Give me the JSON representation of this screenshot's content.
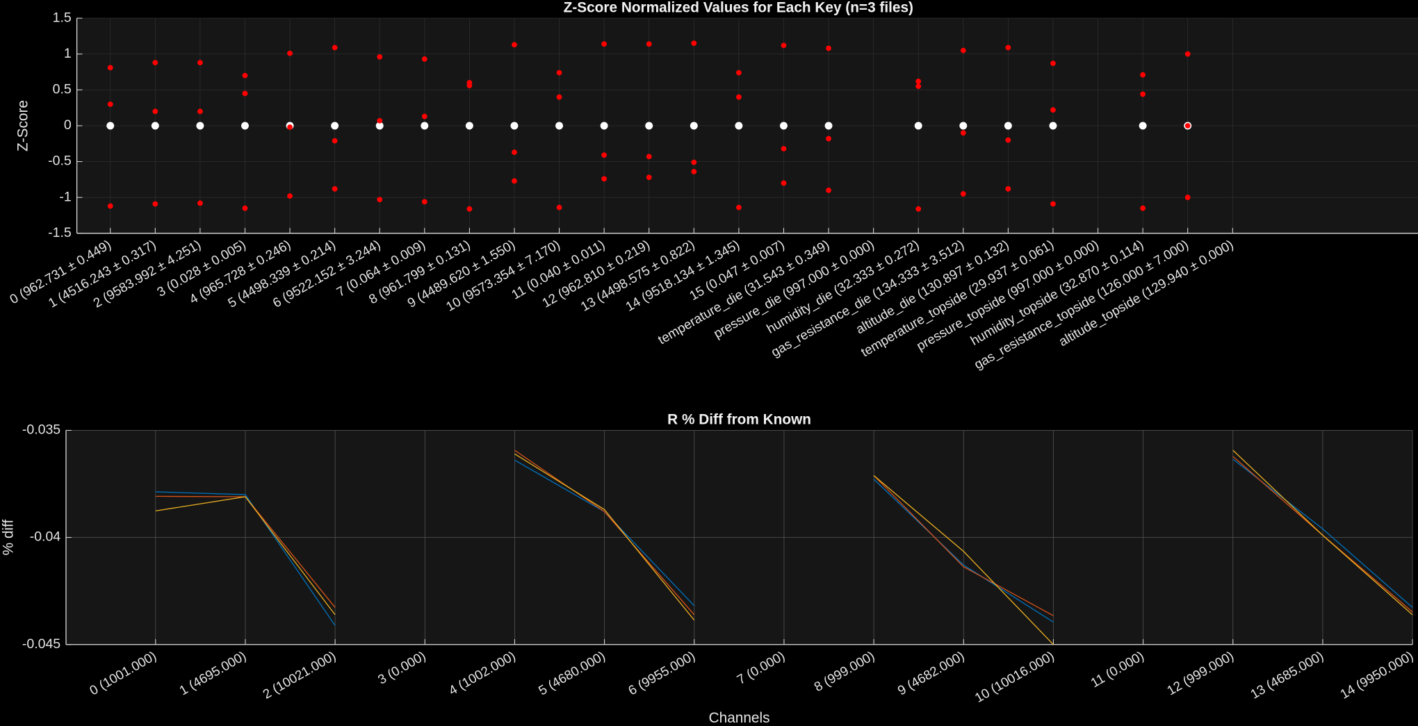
{
  "chart_data": [
    {
      "type": "scatter",
      "title": "Z-Score Normalized Values for Each Key (n=3 files)",
      "ylabel": "Z-Score",
      "categories": [
        "0 (962.731 ± 0.449)",
        "1 (4516.243 ± 0.317)",
        "2 (9583.992 ± 4.251)",
        "3 (0.028 ± 0.005)",
        "4 (965.728 ± 0.246)",
        "5 (4498.339 ± 0.214)",
        "6 (9522.152 ± 3.244)",
        "7 (0.064 ± 0.009)",
        "8 (961.799 ± 0.131)",
        "9 (4489.620 ± 1.550)",
        "10 (9573.354 ± 7.170)",
        "11 (0.040 ± 0.011)",
        "12 (962.810 ± 0.219)",
        "13 (4498.575 ± 0.822)",
        "14 (9518.134 ± 1.345)",
        "15 (0.047 ± 0.007)",
        "temperature_die (31.543 ± 0.349)",
        "pressure_die (997.000 ± 0.000)",
        "humidity_die (32.333 ± 0.272)",
        "gas_resistance_die (134.333 ± 3.512)",
        "altitude_die (130.897 ± 0.132)",
        "temperature_topside (29.937 ± 0.061)",
        "pressure_topside (997.000 ± 0.000)",
        "humidity_topside (32.870 ± 0.114)",
        "gas_resistance_topside (126.000 ± 7.000)",
        "altitude_topside (129.940 ± 0.000)"
      ],
      "series": [
        {
          "color": "#ffffff",
          "values": [
            0,
            0,
            0,
            0,
            0,
            0,
            0,
            0,
            0,
            0,
            0,
            0,
            0,
            0,
            0,
            0,
            0,
            null,
            0,
            0,
            0,
            0,
            null,
            0,
            0,
            null
          ]
        },
        {
          "color": "#ff0000",
          "values": [
            0.81,
            0.88,
            0.88,
            0.7,
            1.01,
            1.09,
            0.96,
            0.93,
            0.6,
            1.13,
            0.74,
            1.14,
            1.14,
            1.15,
            0.74,
            1.12,
            1.08,
            null,
            0.62,
            1.05,
            1.09,
            0.87,
            null,
            0.71,
            1.0,
            null
          ]
        },
        {
          "color": "#ff0000",
          "values": [
            0.3,
            0.2,
            0.2,
            0.45,
            -0.02,
            -0.21,
            0.07,
            0.13,
            0.56,
            -0.37,
            0.4,
            -0.41,
            -0.43,
            -0.51,
            0.4,
            -0.32,
            -0.18,
            null,
            0.55,
            -0.1,
            -0.2,
            0.22,
            null,
            0.44,
            0,
            null
          ]
        },
        {
          "color": "#ff0000",
          "values": [
            -1.12,
            -1.09,
            -1.08,
            -1.15,
            -0.98,
            -0.88,
            -1.03,
            -1.06,
            -1.16,
            -0.77,
            -1.14,
            -0.74,
            -0.72,
            -0.64,
            -1.14,
            -0.8,
            -0.9,
            null,
            -1.16,
            -0.95,
            -0.88,
            -1.09,
            null,
            -1.15,
            -1.0,
            null
          ]
        }
      ],
      "ylim": [
        -1.5,
        1.5
      ],
      "yticks": [
        -1.5,
        -1,
        -0.5,
        0,
        0.5,
        1,
        1.5
      ],
      "grid": true
    },
    {
      "type": "line",
      "title": "R % Diff from Known",
      "xlabel": "Channels",
      "ylabel": "% diff",
      "categories": [
        "0 (1001.000)",
        "1 (4695.000)",
        "2 (10021.000)",
        "3 (0.000)",
        "4 (1002.000)",
        "5 (4680.000)",
        "6 (9955.000)",
        "7 (0.000)",
        "8 (999.000)",
        "9 (4682.000)",
        "10 (10016.000)",
        "11 (0.000)",
        "12 (999.000)",
        "13 (4685.000)",
        "14 (9950.000)"
      ],
      "series": [
        {
          "color": "#0072bd",
          "values": [
            -0.03787,
            -0.038,
            -0.04411,
            null,
            -0.03639,
            -0.0388,
            -0.04319,
            null,
            -0.03728,
            -0.04129,
            -0.04395,
            null,
            -0.03635,
            -0.0396,
            -0.04327
          ]
        },
        {
          "color": "#d95319",
          "values": [
            -0.03808,
            -0.0381,
            -0.04327,
            null,
            -0.03593,
            -0.0388,
            -0.04361,
            null,
            -0.03711,
            -0.04137,
            -0.04365,
            null,
            -0.03622,
            -0.0399,
            -0.04348
          ]
        },
        {
          "color": "#edb120",
          "values": [
            -0.03876,
            -0.0381,
            -0.04361,
            null,
            -0.0361,
            -0.0387,
            -0.04386,
            null,
            -0.03711,
            -0.04065,
            -0.045,
            null,
            -0.03593,
            -0.0399,
            -0.04361
          ]
        }
      ],
      "ylim": [
        -0.045,
        -0.035
      ],
      "yticks": [
        -0.045,
        -0.04,
        -0.035
      ],
      "grid": true
    }
  ]
}
